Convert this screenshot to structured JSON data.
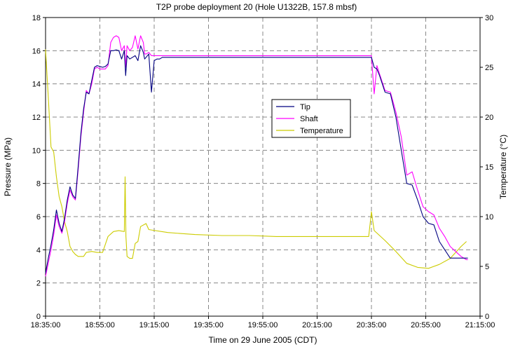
{
  "chart_data": {
    "type": "line",
    "title": "T2P probe deployment 20 (Hole U1322B, 157.8 mbsf)",
    "xlabel": "Time on 29 June 2005 (CDT)",
    "ylabel": "Pressure (MPa)",
    "y2label": "Temperature (°C)",
    "x_ticks": [
      "18:35:00",
      "18:55:00",
      "19:15:00",
      "19:35:00",
      "19:55:00",
      "20:15:00",
      "20:35:00",
      "20:55:00",
      "21:15:00"
    ],
    "xlim_minutes": [
      1115,
      1275
    ],
    "ylim": [
      0,
      18
    ],
    "y_ticks": [
      0,
      2,
      4,
      6,
      8,
      10,
      12,
      14,
      16,
      18
    ],
    "y2lim": [
      0,
      30
    ],
    "y2_ticks": [
      0,
      5,
      10,
      15,
      20,
      25,
      30
    ],
    "grid": true,
    "legend_position": "center",
    "colors": {
      "tip": "#000080",
      "shaft": "#ff00ff",
      "temperature": "#cccc00"
    },
    "series": [
      {
        "name": "Tip",
        "axis": "left",
        "x": [
          1115,
          1116,
          1117,
          1118,
          1119,
          1120,
          1121,
          1122,
          1123,
          1124,
          1125,
          1126,
          1127,
          1128,
          1129,
          1130,
          1131,
          1132,
          1133,
          1134,
          1135,
          1136,
          1137,
          1138,
          1139,
          1140,
          1141,
          1142,
          1143,
          1144,
          1144.5,
          1145,
          1146,
          1147,
          1148,
          1149,
          1150,
          1151,
          1151.5,
          1152,
          1153,
          1154,
          1155,
          1156,
          1157,
          1158,
          1158.5,
          1159,
          1160,
          1161,
          1162,
          1163,
          1164,
          1165,
          1170,
          1190,
          1210,
          1220,
          1230,
          1235,
          1236,
          1237,
          1238,
          1239,
          1240,
          1242,
          1244,
          1246,
          1248,
          1250,
          1252,
          1254,
          1256,
          1258,
          1260,
          1262,
          1264,
          1266,
          1268,
          1270,
          1270.5
        ],
        "values": [
          2.6,
          3.5,
          4.3,
          5.2,
          6.4,
          5.6,
          5.1,
          5.9,
          7.0,
          7.8,
          7.3,
          7.1,
          9.0,
          11.0,
          12.5,
          13.5,
          13.4,
          14.2,
          15.0,
          15.1,
          15.05,
          15.0,
          15.05,
          15.2,
          16.0,
          16.0,
          16.05,
          16.0,
          15.5,
          16.0,
          14.5,
          15.7,
          15.5,
          15.6,
          15.7,
          15.4,
          16.3,
          15.9,
          15.5,
          15.6,
          15.8,
          13.5,
          15.4,
          15.5,
          15.5,
          15.6,
          15.6,
          15.6,
          15.6,
          15.6,
          15.6,
          15.6,
          15.6,
          15.6,
          15.6,
          15.6,
          15.6,
          15.6,
          15.6,
          15.6,
          15.0,
          14.9,
          14.5,
          14.0,
          13.5,
          13.4,
          12.0,
          10.0,
          8.0,
          7.9,
          7.0,
          6.0,
          5.6,
          5.5,
          4.5,
          4.0,
          3.5,
          3.5,
          3.5,
          3.5,
          3.5
        ]
      },
      {
        "name": "Shaft",
        "axis": "left",
        "x": [
          1115,
          1116,
          1117,
          1118,
          1119,
          1120,
          1121,
          1122,
          1123,
          1124,
          1125,
          1126,
          1127,
          1128,
          1129,
          1130,
          1131,
          1132,
          1133,
          1134,
          1135,
          1136,
          1137,
          1138,
          1139,
          1140,
          1141,
          1142,
          1143,
          1144,
          1144.5,
          1145,
          1146,
          1147,
          1148,
          1149,
          1150,
          1151,
          1151.5,
          1152,
          1153,
          1154,
          1155,
          1156,
          1160,
          1170,
          1190,
          1210,
          1230,
          1235,
          1236,
          1237,
          1238,
          1239,
          1240,
          1242,
          1244,
          1246,
          1248,
          1250,
          1252,
          1254,
          1256,
          1258,
          1260,
          1262,
          1264,
          1266,
          1268,
          1270,
          1270.5
        ],
        "values": [
          2.4,
          3.2,
          4.0,
          4.9,
          6.1,
          5.4,
          5.0,
          5.7,
          6.8,
          7.6,
          7.2,
          7.0,
          8.8,
          10.8,
          12.3,
          13.6,
          13.4,
          14.0,
          14.9,
          15.0,
          14.9,
          14.9,
          14.9,
          15.1,
          16.5,
          16.8,
          16.9,
          16.8,
          16.0,
          16.3,
          15.0,
          16.3,
          16.0,
          16.2,
          16.9,
          16.1,
          16.9,
          16.5,
          15.8,
          15.8,
          15.9,
          15.7,
          15.7,
          15.7,
          15.7,
          15.7,
          15.7,
          15.7,
          15.7,
          15.7,
          13.4,
          15.1,
          14.6,
          14.1,
          13.6,
          13.5,
          12.3,
          10.8,
          8.5,
          8.7,
          7.6,
          6.6,
          6.3,
          6.1,
          5.3,
          4.8,
          4.2,
          3.9,
          3.6,
          3.4,
          3.4
        ]
      },
      {
        "name": "Temperature",
        "axis": "right",
        "x": [
          1115,
          1116,
          1117,
          1118,
          1119,
          1120,
          1121,
          1122,
          1123,
          1124,
          1125,
          1126,
          1127,
          1128,
          1129,
          1130,
          1132,
          1134,
          1136,
          1138,
          1140,
          1142,
          1144,
          1144.3,
          1144.6,
          1145,
          1146,
          1147,
          1148,
          1149,
          1150,
          1152,
          1153,
          1160,
          1170,
          1180,
          1190,
          1200,
          1210,
          1220,
          1230,
          1234,
          1235,
          1236,
          1240,
          1244,
          1248,
          1252,
          1256,
          1260,
          1264,
          1268,
          1270
        ],
        "values": [
          26.8,
          22.0,
          17.0,
          16.5,
          14.0,
          12.0,
          11.0,
          9.5,
          8.5,
          7.0,
          6.5,
          6.2,
          6.0,
          6.0,
          6.0,
          6.4,
          6.5,
          6.4,
          6.4,
          8.0,
          8.5,
          8.6,
          8.5,
          14.0,
          8.0,
          6.0,
          5.8,
          5.8,
          7.3,
          7.5,
          9.0,
          9.3,
          8.7,
          8.4,
          8.2,
          8.1,
          8.1,
          8.0,
          8.0,
          8.0,
          8.0,
          8.0,
          10.5,
          8.6,
          7.6,
          6.5,
          5.3,
          4.9,
          4.8,
          5.2,
          5.8,
          7.0,
          7.5
        ]
      }
    ]
  }
}
